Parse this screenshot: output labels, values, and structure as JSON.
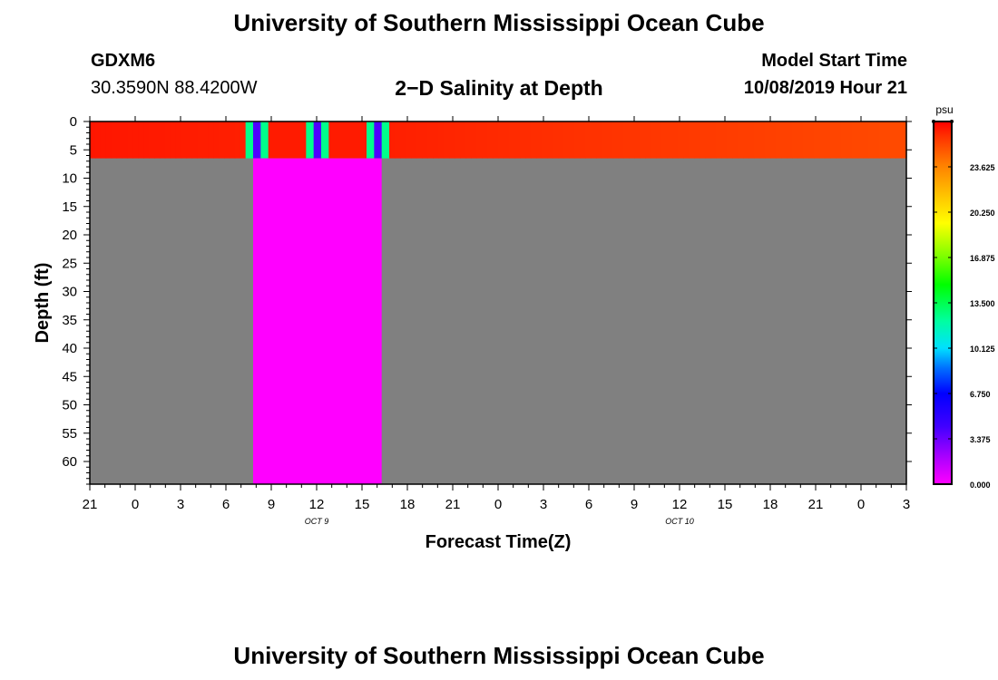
{
  "header": {
    "title": "University of Southern Mississippi Ocean Cube",
    "station_id": "GDXM6",
    "station_coords": "30.3590N 88.4200W",
    "subtitle": "2−D Salinity at Depth",
    "start_label": "Model Start Time",
    "start_value": "10/08/2019 Hour 21"
  },
  "footer": {
    "title": "University of Southern Mississippi Ocean Cube"
  },
  "chart_data": {
    "type": "heatmap",
    "xlabel": "Forecast Time(Z)",
    "ylabel": "Depth (ft)",
    "x_range_hours": [
      0,
      54
    ],
    "x_tick_labels": [
      "21",
      "0",
      "3",
      "6",
      "9",
      "12",
      "15",
      "18",
      "21",
      "0",
      "3",
      "6",
      "9",
      "12",
      "15",
      "18",
      "21",
      "0",
      "3"
    ],
    "x_date_labels": [
      {
        "label": "OCT 9",
        "hour": 15
      },
      {
        "label": "OCT 10",
        "hour": 39
      }
    ],
    "y_range_ft": [
      0,
      64
    ],
    "y_tick_labels": [
      "0",
      "5",
      "10",
      "15",
      "20",
      "25",
      "30",
      "35",
      "40",
      "45",
      "50",
      "55",
      "60"
    ],
    "colorbar": {
      "unit": "psu",
      "min": 0,
      "max": 27,
      "tick_labels": [
        "0.000",
        "3.375",
        "6.750",
        "10.125",
        "13.500",
        "16.875",
        "20.250",
        "23.625"
      ]
    },
    "surface_layer_ft": [
      0,
      6.5
    ],
    "no_data_color": "#808080",
    "surface_salinity": [
      {
        "hour_start": 0,
        "hour_end": 10.3,
        "psu_start": 26.5,
        "psu_end": 26.3
      },
      {
        "hour_start": 10.3,
        "hour_end": 10.8,
        "psu_start": 12.5,
        "psu_end": 12.5
      },
      {
        "hour_start": 10.8,
        "hour_end": 11.3,
        "psu_start": 4.0,
        "psu_end": 4.0
      },
      {
        "hour_start": 11.3,
        "hour_end": 11.8,
        "psu_start": 12.5,
        "psu_end": 12.5
      },
      {
        "hour_start": 11.8,
        "hour_end": 14.3,
        "psu_start": 26.4,
        "psu_end": 26.4
      },
      {
        "hour_start": 14.3,
        "hour_end": 14.8,
        "psu_start": 12.5,
        "psu_end": 12.5
      },
      {
        "hour_start": 14.8,
        "hour_end": 15.3,
        "psu_start": 4.0,
        "psu_end": 4.0
      },
      {
        "hour_start": 15.3,
        "hour_end": 15.8,
        "psu_start": 12.5,
        "psu_end": 12.5
      },
      {
        "hour_start": 15.8,
        "hour_end": 18.3,
        "psu_start": 26.4,
        "psu_end": 26.4
      },
      {
        "hour_start": 18.3,
        "hour_end": 18.8,
        "psu_start": 12.5,
        "psu_end": 12.5
      },
      {
        "hour_start": 18.8,
        "hour_end": 19.3,
        "psu_start": 4.0,
        "psu_end": 4.0
      },
      {
        "hour_start": 19.3,
        "hour_end": 19.8,
        "psu_start": 12.5,
        "psu_end": 12.5
      },
      {
        "hour_start": 19.8,
        "hour_end": 54,
        "psu_start": 26.3,
        "psu_end": 25.2
      }
    ],
    "subsurface_salinity": [
      {
        "hour_start": 10.8,
        "hour_end": 19.3,
        "ft_start": 6.5,
        "ft_end": 64,
        "psu": 0.0
      }
    ]
  }
}
